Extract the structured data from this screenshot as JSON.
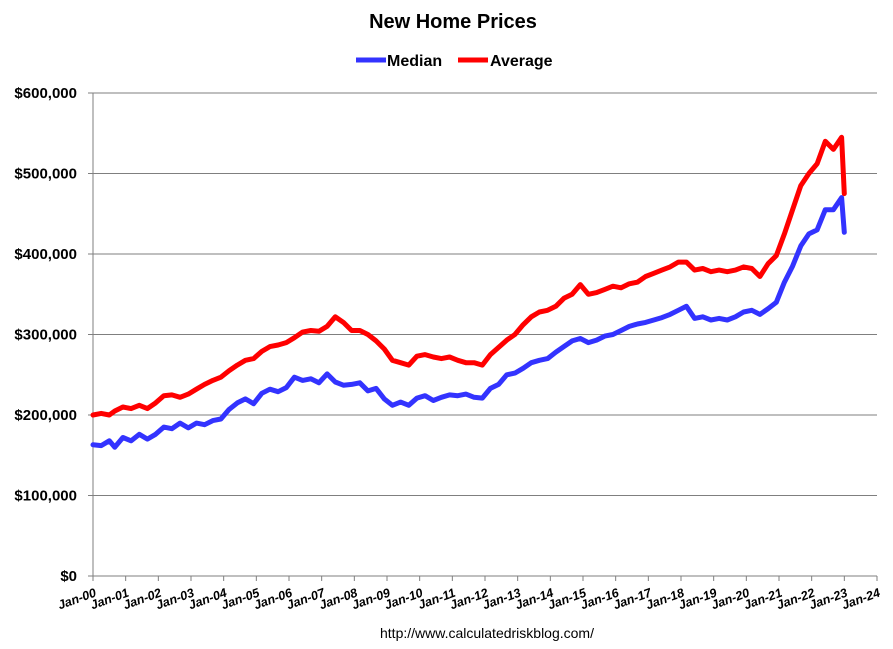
{
  "chart_data": {
    "type": "line",
    "title": "New Home Prices",
    "source": "http://www.calculatedriskblog.com/",
    "legend_position": "top-center",
    "grid": "horizontal",
    "ylim": [
      0,
      600000
    ],
    "yticks": [
      {
        "value": 0,
        "label": "$0"
      },
      {
        "value": 100000,
        "label": "$100,000"
      },
      {
        "value": 200000,
        "label": "$200,000"
      },
      {
        "value": 300000,
        "label": "$300,000"
      },
      {
        "value": 400000,
        "label": "$400,000"
      },
      {
        "value": 500000,
        "label": "$500,000"
      },
      {
        "value": 600000,
        "label": "$600,000"
      }
    ],
    "xlim": [
      "2000-01",
      "2024-01"
    ],
    "xticks": [
      "Jan-00",
      "Jan-01",
      "Jan-02",
      "Jan-03",
      "Jan-04",
      "Jan-05",
      "Jan-06",
      "Jan-07",
      "Jan-08",
      "Jan-09",
      "Jan-10",
      "Jan-11",
      "Jan-12",
      "Jan-13",
      "Jan-14",
      "Jan-15",
      "Jan-16",
      "Jan-17",
      "Jan-18",
      "Jan-19",
      "Jan-20",
      "Jan-21",
      "Jan-22",
      "Jan-23",
      "Jan-24"
    ],
    "series": [
      {
        "name": "Median",
        "color": "#3333ff",
        "points": [
          [
            "2000-01",
            163000
          ],
          [
            "2000-04",
            162000
          ],
          [
            "2000-07",
            168000
          ],
          [
            "2000-09",
            160000
          ],
          [
            "2000-12",
            172000
          ],
          [
            "2001-03",
            168000
          ],
          [
            "2001-06",
            176000
          ],
          [
            "2001-09",
            170000
          ],
          [
            "2001-12",
            176000
          ],
          [
            "2002-03",
            185000
          ],
          [
            "2002-06",
            183000
          ],
          [
            "2002-09",
            190000
          ],
          [
            "2002-12",
            184000
          ],
          [
            "2003-03",
            190000
          ],
          [
            "2003-06",
            188000
          ],
          [
            "2003-09",
            193000
          ],
          [
            "2003-12",
            195000
          ],
          [
            "2004-03",
            207000
          ],
          [
            "2004-06",
            215000
          ],
          [
            "2004-09",
            220000
          ],
          [
            "2004-12",
            214000
          ],
          [
            "2005-03",
            227000
          ],
          [
            "2005-06",
            232000
          ],
          [
            "2005-09",
            229000
          ],
          [
            "2005-12",
            234000
          ],
          [
            "2006-03",
            247000
          ],
          [
            "2006-06",
            243000
          ],
          [
            "2006-09",
            245000
          ],
          [
            "2006-12",
            240000
          ],
          [
            "2007-03",
            251000
          ],
          [
            "2007-06",
            241000
          ],
          [
            "2007-09",
            237000
          ],
          [
            "2007-12",
            238000
          ],
          [
            "2008-03",
            240000
          ],
          [
            "2008-06",
            230000
          ],
          [
            "2008-09",
            233000
          ],
          [
            "2008-12",
            220000
          ],
          [
            "2009-03",
            212000
          ],
          [
            "2009-06",
            216000
          ],
          [
            "2009-09",
            212000
          ],
          [
            "2009-12",
            221000
          ],
          [
            "2010-03",
            224000
          ],
          [
            "2010-06",
            218000
          ],
          [
            "2010-09",
            222000
          ],
          [
            "2010-12",
            225000
          ],
          [
            "2011-03",
            224000
          ],
          [
            "2011-06",
            226000
          ],
          [
            "2011-09",
            222000
          ],
          [
            "2011-12",
            221000
          ],
          [
            "2012-03",
            233000
          ],
          [
            "2012-06",
            238000
          ],
          [
            "2012-09",
            250000
          ],
          [
            "2012-12",
            252000
          ],
          [
            "2013-03",
            258000
          ],
          [
            "2013-06",
            265000
          ],
          [
            "2013-09",
            268000
          ],
          [
            "2013-12",
            270000
          ],
          [
            "2014-03",
            278000
          ],
          [
            "2014-06",
            285000
          ],
          [
            "2014-09",
            292000
          ],
          [
            "2014-12",
            295000
          ],
          [
            "2015-03",
            290000
          ],
          [
            "2015-06",
            293000
          ],
          [
            "2015-09",
            298000
          ],
          [
            "2015-12",
            300000
          ],
          [
            "2016-03",
            305000
          ],
          [
            "2016-06",
            310000
          ],
          [
            "2016-09",
            313000
          ],
          [
            "2016-12",
            315000
          ],
          [
            "2017-03",
            318000
          ],
          [
            "2017-06",
            321000
          ],
          [
            "2017-09",
            325000
          ],
          [
            "2017-12",
            330000
          ],
          [
            "2018-03",
            335000
          ],
          [
            "2018-06",
            320000
          ],
          [
            "2018-09",
            322000
          ],
          [
            "2018-12",
            318000
          ],
          [
            "2019-03",
            320000
          ],
          [
            "2019-06",
            318000
          ],
          [
            "2019-09",
            322000
          ],
          [
            "2019-12",
            328000
          ],
          [
            "2020-03",
            330000
          ],
          [
            "2020-06",
            325000
          ],
          [
            "2020-09",
            332000
          ],
          [
            "2020-12",
            340000
          ],
          [
            "2021-03",
            365000
          ],
          [
            "2021-06",
            385000
          ],
          [
            "2021-09",
            410000
          ],
          [
            "2021-12",
            425000
          ],
          [
            "2022-03",
            430000
          ],
          [
            "2022-06",
            455000
          ],
          [
            "2022-09",
            455000
          ],
          [
            "2022-12",
            470000
          ],
          [
            "2023-01",
            427000
          ]
        ]
      },
      {
        "name": "Average",
        "color": "#ff0000",
        "points": [
          [
            "2000-01",
            200000
          ],
          [
            "2000-04",
            202000
          ],
          [
            "2000-07",
            200000
          ],
          [
            "2000-09",
            205000
          ],
          [
            "2000-12",
            210000
          ],
          [
            "2001-03",
            208000
          ],
          [
            "2001-06",
            212000
          ],
          [
            "2001-09",
            208000
          ],
          [
            "2001-12",
            215000
          ],
          [
            "2002-03",
            224000
          ],
          [
            "2002-06",
            225000
          ],
          [
            "2002-09",
            222000
          ],
          [
            "2002-12",
            226000
          ],
          [
            "2003-03",
            232000
          ],
          [
            "2003-06",
            238000
          ],
          [
            "2003-09",
            243000
          ],
          [
            "2003-12",
            247000
          ],
          [
            "2004-03",
            255000
          ],
          [
            "2004-06",
            262000
          ],
          [
            "2004-09",
            268000
          ],
          [
            "2004-12",
            270000
          ],
          [
            "2005-03",
            279000
          ],
          [
            "2005-06",
            285000
          ],
          [
            "2005-09",
            287000
          ],
          [
            "2005-12",
            290000
          ],
          [
            "2006-03",
            296000
          ],
          [
            "2006-06",
            303000
          ],
          [
            "2006-09",
            305000
          ],
          [
            "2006-12",
            304000
          ],
          [
            "2007-03",
            310000
          ],
          [
            "2007-06",
            322000
          ],
          [
            "2007-09",
            315000
          ],
          [
            "2007-12",
            305000
          ],
          [
            "2008-03",
            305000
          ],
          [
            "2008-06",
            300000
          ],
          [
            "2008-09",
            292000
          ],
          [
            "2008-12",
            282000
          ],
          [
            "2009-03",
            268000
          ],
          [
            "2009-06",
            265000
          ],
          [
            "2009-09",
            262000
          ],
          [
            "2009-12",
            273000
          ],
          [
            "2010-03",
            275000
          ],
          [
            "2010-06",
            272000
          ],
          [
            "2010-09",
            270000
          ],
          [
            "2010-12",
            272000
          ],
          [
            "2011-03",
            268000
          ],
          [
            "2011-06",
            265000
          ],
          [
            "2011-09",
            265000
          ],
          [
            "2011-12",
            262000
          ],
          [
            "2012-03",
            275000
          ],
          [
            "2012-06",
            284000
          ],
          [
            "2012-09",
            293000
          ],
          [
            "2012-12",
            300000
          ],
          [
            "2013-03",
            312000
          ],
          [
            "2013-06",
            322000
          ],
          [
            "2013-09",
            328000
          ],
          [
            "2013-12",
            330000
          ],
          [
            "2014-03",
            335000
          ],
          [
            "2014-06",
            345000
          ],
          [
            "2014-09",
            350000
          ],
          [
            "2014-12",
            362000
          ],
          [
            "2015-03",
            350000
          ],
          [
            "2015-06",
            352000
          ],
          [
            "2015-09",
            356000
          ],
          [
            "2015-12",
            360000
          ],
          [
            "2016-03",
            358000
          ],
          [
            "2016-06",
            363000
          ],
          [
            "2016-09",
            365000
          ],
          [
            "2016-12",
            372000
          ],
          [
            "2017-03",
            376000
          ],
          [
            "2017-06",
            380000
          ],
          [
            "2017-09",
            384000
          ],
          [
            "2017-12",
            390000
          ],
          [
            "2018-03",
            390000
          ],
          [
            "2018-06",
            380000
          ],
          [
            "2018-09",
            382000
          ],
          [
            "2018-12",
            378000
          ],
          [
            "2019-03",
            380000
          ],
          [
            "2019-06",
            378000
          ],
          [
            "2019-09",
            380000
          ],
          [
            "2019-12",
            384000
          ],
          [
            "2020-03",
            382000
          ],
          [
            "2020-06",
            372000
          ],
          [
            "2020-09",
            388000
          ],
          [
            "2020-12",
            398000
          ],
          [
            "2021-03",
            425000
          ],
          [
            "2021-06",
            455000
          ],
          [
            "2021-09",
            485000
          ],
          [
            "2021-12",
            500000
          ],
          [
            "2022-03",
            512000
          ],
          [
            "2022-06",
            540000
          ],
          [
            "2022-09",
            530000
          ],
          [
            "2022-12",
            545000
          ],
          [
            "2023-01",
            475000
          ]
        ]
      }
    ]
  }
}
